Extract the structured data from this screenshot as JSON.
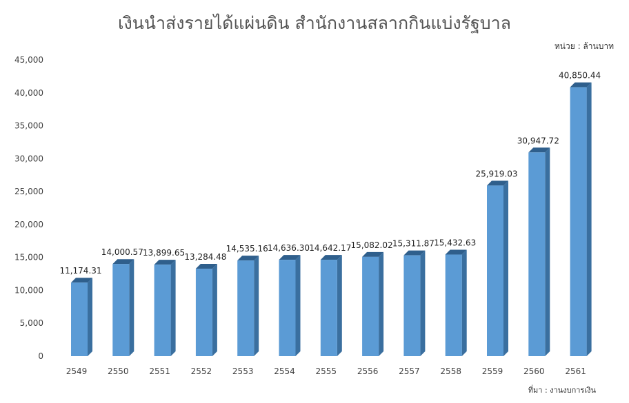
{
  "chart_data": {
    "type": "bar",
    "title": "เงินนำส่งรายได้แผ่นดิน สำนักงานสลากกินแบ่งรัฐบาล",
    "unit_note": "หน่วย : ล้านบาท",
    "source_note": "ที่มา : งานงบการเงิน",
    "categories": [
      "2549",
      "2550",
      "2551",
      "2552",
      "2553",
      "2554",
      "2555",
      "2556",
      "2557",
      "2558",
      "2559",
      "2560",
      "2561"
    ],
    "values": [
      11174.31,
      14000.57,
      13899.65,
      13284.48,
      14535.16,
      14636.3,
      14642.17,
      15082.02,
      15311.87,
      15432.63,
      25919.03,
      30947.72,
      40850.44
    ],
    "value_labels": [
      "11,174.31",
      "14,000.57",
      "13,899.65",
      "13,284.48",
      "14,535.16",
      "14,636.30",
      "14,642.17",
      "15,082.02",
      "15,311.87",
      "15,432.63",
      "25,919.03",
      "30,947.72",
      "40,850.44"
    ],
    "yticks": [
      "0",
      "5,000",
      "10,000",
      "15,000",
      "20,000",
      "25,000",
      "30,000",
      "35,000",
      "40,000",
      "45,000"
    ],
    "ylim": [
      0,
      45000
    ],
    "grid": false,
    "bar_color": "#5B9BD5",
    "bar_side_color": "#3A6F9F",
    "bar_top_color": "#2F5F8C"
  }
}
